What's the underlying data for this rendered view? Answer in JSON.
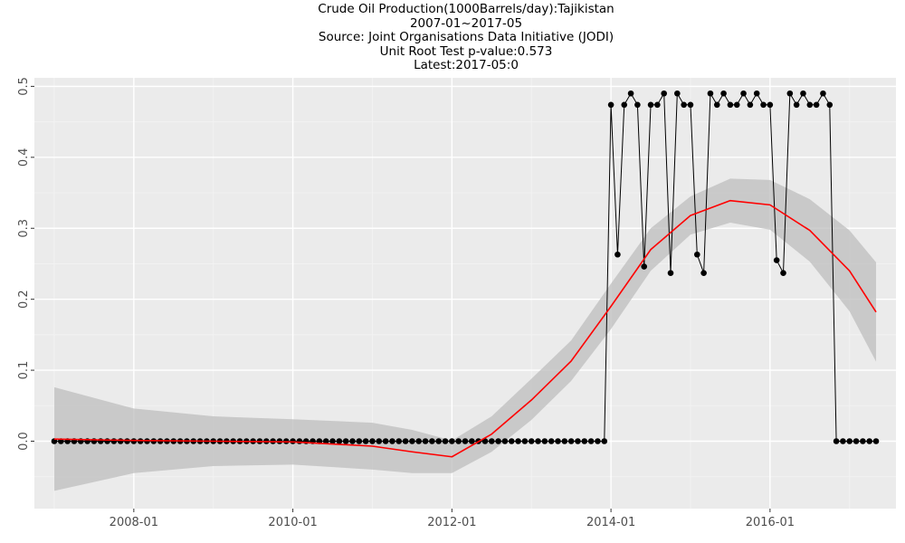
{
  "chart_data": {
    "type": "line",
    "title": "Crude Oil Production(1000Barrels/day):Tajikistan",
    "subtitle_lines": [
      "2007-01~2017-05",
      "Source: Joint Organisations Data Initiative (JODI)",
      "Unit Root Test p-value:0.573",
      "Latest:2017-05:0"
    ],
    "xlabel": "",
    "ylabel": "",
    "x_start": "2007-01",
    "x_end": "2017-05",
    "xlim": [
      "2006-10",
      "2017-08"
    ],
    "ylim": [
      -0.095,
      0.512
    ],
    "x_ticks": [
      "2008-01",
      "2010-01",
      "2012-01",
      "2014-01",
      "2016-01"
    ],
    "y_ticks": [
      0.0,
      0.1,
      0.2,
      0.3,
      0.4,
      0.5
    ],
    "y_tick_labels": [
      "0.0",
      "0.1",
      "0.2",
      "0.3",
      "0.4",
      "0.5"
    ],
    "grid": true,
    "legend": "none",
    "series": [
      {
        "x": [
          "2007-01",
          "2007-02",
          "2007-03",
          "2007-04",
          "2007-05",
          "2007-06",
          "2007-07",
          "2007-08",
          "2007-09",
          "2007-10",
          "2007-11",
          "2007-12",
          "2008-01",
          "2008-02",
          "2008-03",
          "2008-04",
          "2008-05",
          "2008-06",
          "2008-07",
          "2008-08",
          "2008-09",
          "2008-10",
          "2008-11",
          "2008-12",
          "2009-01",
          "2009-02",
          "2009-03",
          "2009-04",
          "2009-05",
          "2009-06",
          "2009-07",
          "2009-08",
          "2009-09",
          "2009-10",
          "2009-11",
          "2009-12",
          "2010-01",
          "2010-02",
          "2010-03",
          "2010-04",
          "2010-05",
          "2010-06",
          "2010-07",
          "2010-08",
          "2010-09",
          "2010-10",
          "2010-11",
          "2010-12",
          "2011-01",
          "2011-02",
          "2011-03",
          "2011-04",
          "2011-05",
          "2011-06",
          "2011-07",
          "2011-08",
          "2011-09",
          "2011-10",
          "2011-11",
          "2011-12",
          "2012-01",
          "2012-02",
          "2012-03",
          "2012-04",
          "2012-05",
          "2012-06",
          "2012-07",
          "2012-08",
          "2012-09",
          "2012-10",
          "2012-11",
          "2012-12",
          "2013-01",
          "2013-02",
          "2013-03",
          "2013-04",
          "2013-05",
          "2013-06",
          "2013-07",
          "2013-08",
          "2013-09",
          "2013-10",
          "2013-11",
          "2013-12",
          "2014-01",
          "2014-02",
          "2014-03",
          "2014-04",
          "2014-05",
          "2014-06",
          "2014-07",
          "2014-08",
          "2014-09",
          "2014-10",
          "2014-11",
          "2014-12",
          "2015-01",
          "2015-02",
          "2015-03",
          "2015-04",
          "2015-05",
          "2015-06",
          "2015-07",
          "2015-08",
          "2015-09",
          "2015-10",
          "2015-11",
          "2015-12",
          "2016-01",
          "2016-02",
          "2016-03",
          "2016-04",
          "2016-05",
          "2016-06",
          "2016-07",
          "2016-08",
          "2016-09",
          "2016-10",
          "2016-11",
          "2016-12",
          "2017-01",
          "2017-02",
          "2017-03",
          "2017-04",
          "2017-05"
        ],
        "y": [
          0,
          0,
          0,
          0,
          0,
          0,
          0,
          0,
          0,
          0,
          0,
          0,
          0,
          0,
          0,
          0,
          0,
          0,
          0,
          0,
          0,
          0,
          0,
          0,
          0,
          0,
          0,
          0,
          0,
          0,
          0,
          0,
          0,
          0,
          0,
          0,
          0,
          0,
          0,
          0,
          0,
          0,
          0,
          0,
          0,
          0,
          0,
          0,
          0,
          0,
          0,
          0,
          0,
          0,
          0,
          0,
          0,
          0,
          0,
          0,
          0,
          0,
          0,
          0,
          0,
          0,
          0,
          0,
          0,
          0,
          0,
          0,
          0,
          0,
          0,
          0,
          0,
          0,
          0,
          0,
          0,
          0,
          0,
          0,
          0.474,
          0.263,
          0.474,
          0.49,
          0.474,
          0.246,
          0.474,
          0.474,
          0.49,
          0.237,
          0.49,
          0.474,
          0.474,
          0.263,
          0.237,
          0.49,
          0.474,
          0.49,
          0.474,
          0.474,
          0.49,
          0.474,
          0.49,
          0.474,
          0.474,
          0.255,
          0.237,
          0.49,
          0.474,
          0.49,
          0.474,
          0.474,
          0.49,
          0.474,
          0,
          0,
          0,
          0,
          0,
          0,
          0
        ]
      }
    ],
    "smooth": {
      "x": [
        "2007-01",
        "2008-01",
        "2009-01",
        "2010-01",
        "2011-01",
        "2011-07",
        "2012-01",
        "2012-07",
        "2013-01",
        "2013-07",
        "2014-01",
        "2014-07",
        "2015-01",
        "2015-07",
        "2016-01",
        "2016-07",
        "2017-01",
        "2017-05"
      ],
      "y": [
        0.003,
        0.001,
        0.0,
        -0.001,
        -0.007,
        -0.015,
        -0.022,
        0.01,
        0.058,
        0.113,
        0.19,
        0.27,
        0.318,
        0.339,
        0.333,
        0.297,
        0.24,
        0.182
      ],
      "ci_low": [
        -0.07,
        -0.045,
        -0.035,
        -0.033,
        -0.04,
        -0.045,
        -0.045,
        -0.015,
        0.03,
        0.085,
        0.158,
        0.24,
        0.291,
        0.308,
        0.298,
        0.253,
        0.183,
        0.112
      ],
      "ci_high": [
        0.076,
        0.046,
        0.035,
        0.031,
        0.026,
        0.016,
        0.001,
        0.035,
        0.088,
        0.142,
        0.222,
        0.3,
        0.345,
        0.37,
        0.368,
        0.341,
        0.297,
        0.252
      ]
    },
    "colors": {
      "panel": "#ebebeb",
      "grid_major": "#ffffff",
      "grid_minor": "#f2f2f2",
      "line": "#000000",
      "point": "#000000",
      "smooth": "#ff0000",
      "ribbon": "#bdbdbd"
    }
  }
}
